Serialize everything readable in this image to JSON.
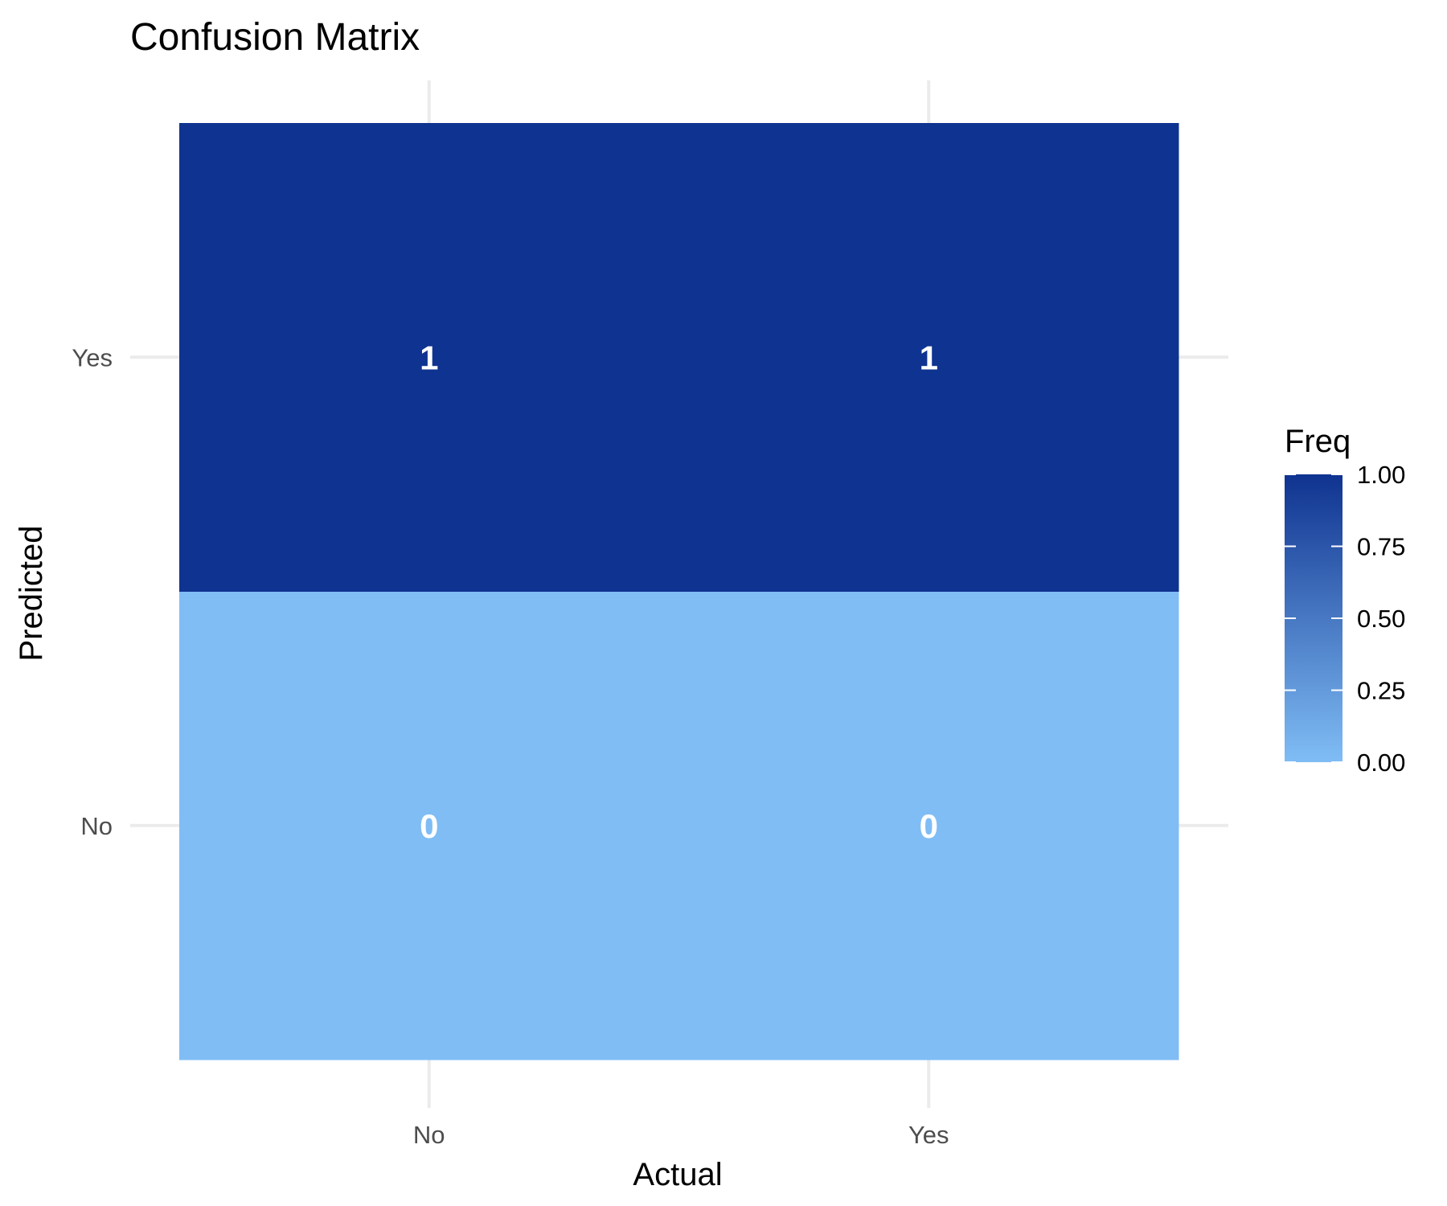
{
  "chart_data": {
    "type": "heatmap",
    "title": "Confusion Matrix",
    "xlabel": "Actual",
    "ylabel": "Predicted",
    "x_categories": [
      "No",
      "Yes"
    ],
    "y_categories": [
      "No",
      "Yes"
    ],
    "cells": [
      {
        "x": "No",
        "y": "No",
        "value": 0,
        "label": "0"
      },
      {
        "x": "Yes",
        "y": "No",
        "value": 0,
        "label": "0"
      },
      {
        "x": "No",
        "y": "Yes",
        "value": 1,
        "label": "1"
      },
      {
        "x": "Yes",
        "y": "Yes",
        "value": 1,
        "label": "1"
      }
    ],
    "legend": {
      "title": "Freq",
      "placement": "right",
      "range": [
        0,
        1
      ],
      "ticks": [
        "0.00",
        "0.25",
        "0.50",
        "0.75",
        "1.00"
      ],
      "low_color": "#80bdf5",
      "high_color": "#0f3390"
    },
    "grid": true
  }
}
